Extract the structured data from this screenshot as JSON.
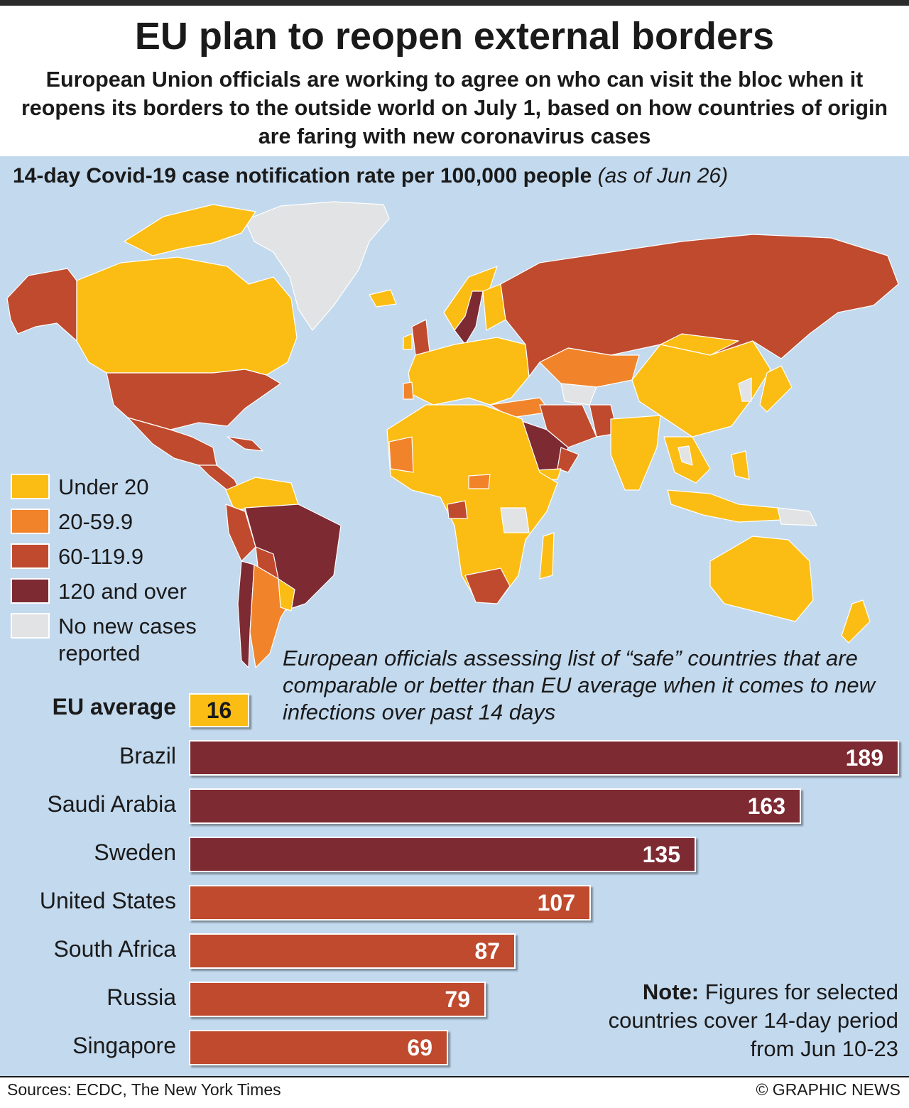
{
  "title": "EU plan to reopen external borders",
  "subtitle": "European Union officials are working to agree on who can visit the bloc when it reopens its borders to the outside world on July 1, based on how countries of origin are faring with new coronavirus cases",
  "map": {
    "title": "14-day Covid-19 case notification rate per 100,000 people",
    "title_date": "(as of Jun 26)",
    "colors": {
      "ocean": "#c3d9ee",
      "under_20": "#fbbd13",
      "20_59": "#f1842a",
      "60_119": "#bf4a2e",
      "120_over": "#7d2a33",
      "no_data": "#e2e3e4"
    }
  },
  "legend": [
    {
      "label": "Under 20",
      "color": "#fbbd13"
    },
    {
      "label": "20-59.9",
      "color": "#f1842a"
    },
    {
      "label": "60-119.9",
      "color": "#bf4a2e"
    },
    {
      "label": "120 and over",
      "color": "#7d2a33"
    },
    {
      "label": "No new cases reported",
      "color": "#e2e3e4"
    }
  ],
  "annotation": "European officials assessing list of “safe” countries that are comparable or better than EU average when it comes to new infections over past 14 days",
  "eu_average": {
    "label": "EU average",
    "value": "16",
    "color": "#fbbd13"
  },
  "chart_data": {
    "type": "bar",
    "orientation": "horizontal",
    "categories": [
      "Brazil",
      "Saudi Arabia",
      "Sweden",
      "United States",
      "South Africa",
      "Russia",
      "Singapore"
    ],
    "values": [
      189,
      163,
      135,
      107,
      87,
      79,
      69
    ],
    "colors": [
      "#7d2a33",
      "#7d2a33",
      "#7d2a33",
      "#bf4a2e",
      "#bf4a2e",
      "#bf4a2e",
      "#bf4a2e"
    ],
    "reference": {
      "label": "EU average",
      "value": 16
    },
    "xlim": [
      0,
      189
    ]
  },
  "note": {
    "bold": "Note:",
    "text": "Figures for selected countries cover 14-day period from Jun 10-23"
  },
  "sources": "Sources: ECDC, The New York Times",
  "copyright": "© GRAPHIC NEWS"
}
